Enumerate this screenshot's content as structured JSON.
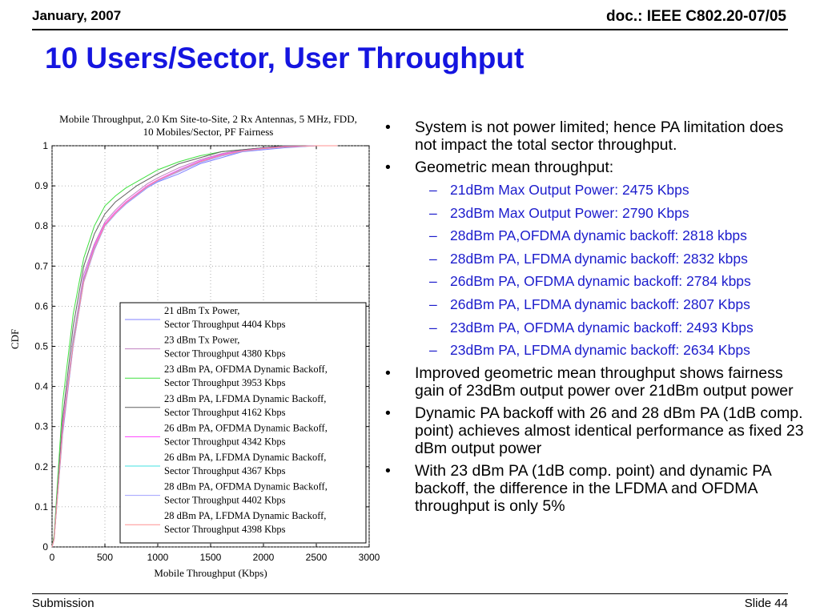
{
  "header": {
    "date": "January, 2007",
    "doc": "doc.: IEEE C802.20-07/05"
  },
  "slide": {
    "title": "10 Users/Sector, User Throughput"
  },
  "footer": {
    "left": "Submission",
    "right": "Slide 44"
  },
  "bullets": [
    {
      "level": 1,
      "text": "System is not power limited; hence PA limitation does not impact the total sector throughput."
    },
    {
      "level": 1,
      "text": "Geometric mean throughput:"
    },
    {
      "level": 2,
      "text": "21dBm Max Output Power: 2475 Kbps"
    },
    {
      "level": 2,
      "text": "23dBm Max Output Power: 2790 Kbps"
    },
    {
      "level": 2,
      "text": "28dBm PA,OFDMA dynamic backoff: 2818 kbps"
    },
    {
      "level": 2,
      "text": "28dBm PA, LFDMA dynamic backoff: 2832 kbps"
    },
    {
      "level": 2,
      "text": "26dBm PA, OFDMA dynamic backoff: 2784 kbps"
    },
    {
      "level": 2,
      "text": "26dBm PA, LFDMA dynamic backoff: 2807 Kbps"
    },
    {
      "level": 2,
      "text": "23dBm PA, OFDMA dynamic backoff: 2493 Kbps"
    },
    {
      "level": 2,
      "text": "23dBm PA, LFDMA dynamic backoff: 2634 Kbps"
    },
    {
      "level": 1,
      "text": "Improved geometric mean throughput shows fairness gain of 23dBm output power over 21dBm output power"
    },
    {
      "level": 1,
      "text": "Dynamic PA backoff with 26 and 28 dBm PA (1dB comp. point) achieves almost identical performance as fixed 23 dBm output power"
    },
    {
      "level": 1,
      "text": "With 23 dBm PA (1dB comp. point) and dynamic PA backoff, the difference in the LFDMA and OFDMA throughput is only 5%"
    }
  ],
  "marks": {
    "level1": "•",
    "level2": "–"
  },
  "chart_data": {
    "type": "line",
    "title_line1": "Mobile Throughput, 2.0 Km Site-to-Site, 2 Rx Antennas, 5 MHz, FDD,",
    "title_line2": "10 Mobiles/Sector, PF Fairness",
    "xlabel": "Mobile Throughput (Kbps)",
    "ylabel": "CDF",
    "xlim": [
      0,
      3000
    ],
    "ylim": [
      0,
      1
    ],
    "xticks": [
      0,
      500,
      1000,
      1500,
      2000,
      2500,
      3000
    ],
    "yticks": [
      0,
      0.1,
      0.2,
      0.3,
      0.4,
      0.5,
      0.6,
      0.7,
      0.8,
      0.9,
      1
    ],
    "grid": true,
    "legend_position": "lower-right",
    "x": [
      0,
      20,
      100,
      200,
      300,
      400,
      500,
      600,
      700,
      800,
      900,
      1000,
      1200,
      1400,
      1600,
      1800,
      2000,
      2200,
      2500,
      2700
    ],
    "series": [
      {
        "name": "21 dBm Tx Power, | Sector Throughput 4404 Kbps",
        "color": "#8080ff",
        "values": [
          0,
          0.02,
          0.28,
          0.5,
          0.66,
          0.74,
          0.8,
          0.83,
          0.855,
          0.875,
          0.895,
          0.91,
          0.93,
          0.955,
          0.97,
          0.985,
          0.99,
          0.995,
          1.0,
          1.0
        ]
      },
      {
        "name": "23 dBm Tx Power, | Sector Throughput 4380 Kbps",
        "color": "#c080c0",
        "values": [
          0,
          0.02,
          0.3,
          0.52,
          0.68,
          0.755,
          0.81,
          0.84,
          0.865,
          0.885,
          0.905,
          0.92,
          0.945,
          0.965,
          0.98,
          0.99,
          0.995,
          0.998,
          1.0,
          1.0
        ]
      },
      {
        "name": "23 dBm PA, OFDMA Dynamic Backoff, | Sector Throughput 3953 Kbps",
        "color": "#40e040",
        "values": [
          0,
          0.03,
          0.36,
          0.58,
          0.72,
          0.8,
          0.85,
          0.875,
          0.895,
          0.91,
          0.925,
          0.94,
          0.96,
          0.975,
          0.985,
          0.99,
          0.995,
          1.0,
          1.0,
          1.0
        ]
      },
      {
        "name": "23 dBm PA, LFDMA Dynamic Backoff, | Sector Throughput 4162 Kbps",
        "color": "#606060",
        "values": [
          0,
          0.025,
          0.32,
          0.55,
          0.7,
          0.78,
          0.83,
          0.86,
          0.88,
          0.9,
          0.915,
          0.93,
          0.955,
          0.97,
          0.985,
          0.99,
          0.995,
          1.0,
          1.0,
          1.0
        ]
      },
      {
        "name": "26 dBm PA, OFDMA Dynamic Backoff, | Sector Throughput 4342 Kbps",
        "color": "#ff40ff",
        "values": [
          0,
          0.02,
          0.3,
          0.51,
          0.67,
          0.75,
          0.805,
          0.835,
          0.86,
          0.88,
          0.9,
          0.915,
          0.94,
          0.962,
          0.978,
          0.988,
          0.994,
          0.998,
          1.0,
          1.0
        ]
      },
      {
        "name": "26 dBm PA, LFDMA Dynamic Backoff, | Sector Throughput 4367 Kbps",
        "color": "#40e0e0",
        "values": [
          0,
          0.02,
          0.29,
          0.51,
          0.665,
          0.745,
          0.8,
          0.83,
          0.857,
          0.878,
          0.898,
          0.913,
          0.938,
          0.96,
          0.976,
          0.987,
          0.993,
          0.997,
          1.0,
          1.0
        ]
      },
      {
        "name": "28 dBm PA, OFDMA Dynamic Backoff, | Sector Throughput 4402 Kbps",
        "color": "#a0a0ff",
        "values": [
          0,
          0.02,
          0.29,
          0.5,
          0.66,
          0.742,
          0.8,
          0.83,
          0.856,
          0.876,
          0.896,
          0.912,
          0.935,
          0.958,
          0.974,
          0.986,
          0.992,
          0.997,
          1.0,
          1.0
        ]
      },
      {
        "name": "28 dBm PA, LFDMA Dynamic Backoff, | Sector Throughput 4398 Kbps",
        "color": "#ff9090",
        "values": [
          0,
          0.02,
          0.29,
          0.505,
          0.662,
          0.744,
          0.802,
          0.832,
          0.858,
          0.878,
          0.898,
          0.914,
          0.937,
          0.96,
          0.976,
          0.987,
          0.993,
          0.997,
          1.0,
          1.0
        ]
      }
    ]
  }
}
